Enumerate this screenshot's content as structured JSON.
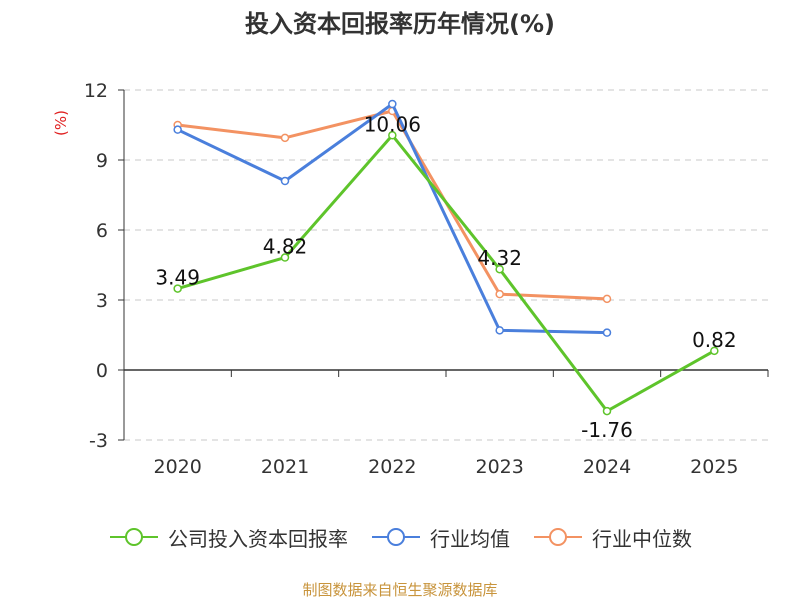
{
  "chart_data": {
    "type": "line",
    "title": "投入资本回报率历年情况(%)",
    "ylabel": "(%)",
    "categories": [
      "2020",
      "2021",
      "2022",
      "2023",
      "2024",
      "2025"
    ],
    "ylim": [
      -3,
      12
    ],
    "yticks": [
      "12",
      "9",
      "6",
      "3",
      "0",
      "-3"
    ],
    "grid": true,
    "legend_position": "bottom",
    "series": [
      {
        "name": "公司投入资本回报率",
        "color": "#5ec42b",
        "values": [
          3.49,
          4.82,
          10.06,
          4.32,
          -1.76,
          0.82
        ],
        "labels": [
          "3.49",
          "4.82",
          "10.06",
          "4.32",
          "-1.76",
          "0.82"
        ]
      },
      {
        "name": "行业均值",
        "color": "#4a7fdc",
        "values": [
          10.3,
          8.1,
          11.4,
          1.7,
          1.6,
          null
        ]
      },
      {
        "name": "行业中位数",
        "color": "#f39262",
        "values": [
          10.5,
          9.95,
          11.1,
          3.25,
          3.05,
          null
        ]
      }
    ]
  },
  "source": "制图数据来自恒生聚源数据库"
}
